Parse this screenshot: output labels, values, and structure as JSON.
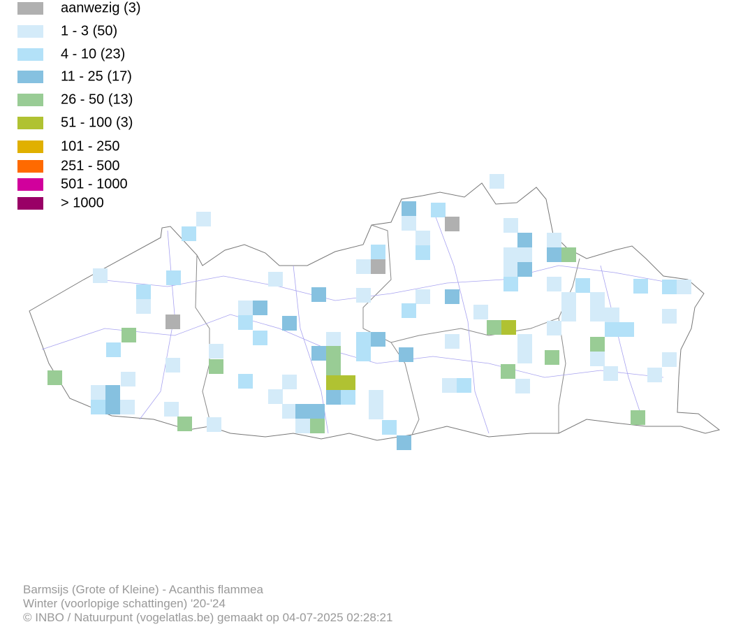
{
  "legend": [
    {
      "label": "aanwezig (3)",
      "color": "#b0b0b0"
    },
    {
      "label": "1 - 3 (50)",
      "color": "#d4ebf9"
    },
    {
      "label": "4 - 10 (23)",
      "color": "#b3e1f8"
    },
    {
      "label": "11 - 25 (17)",
      "color": "#86c1e0"
    },
    {
      "label": "26 - 50 (13)",
      "color": "#99cc95"
    },
    {
      "label": "51 - 100 (3)",
      "color": "#b0c232"
    },
    {
      "label": "101 - 250",
      "color": "#e0b000"
    },
    {
      "label": "251 - 500",
      "color": "#ff6a00"
    },
    {
      "label": "501 - 1000",
      "color": "#d1009c"
    },
    {
      "label": "> 1000",
      "color": "#990066"
    }
  ],
  "footer": {
    "species": "Barmsijs (Grote of Kleine) - Acanthis flammea",
    "period": "Winter (voorlopige schattingen) '20-'24",
    "credit": "© INBO / Natuurpunt (vogelatlas.be) gemaakt op 04-07-2025 02:28:21"
  }
}
